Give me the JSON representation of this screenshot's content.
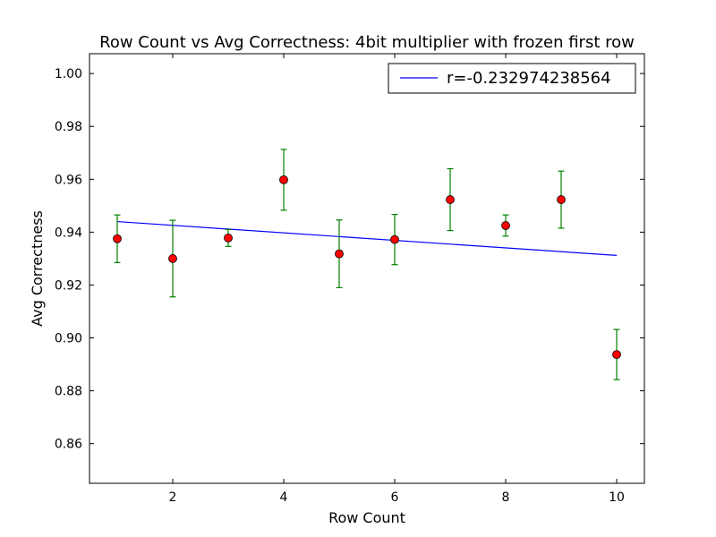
{
  "chart_data": {
    "type": "scatter",
    "title": "Row Count vs Avg Correctness: 4bit multiplier with frozen first row",
    "xlabel": "Row Count",
    "ylabel": "Avg Correctness",
    "xlim": [
      0.5,
      10.5
    ],
    "ylim": [
      0.845,
      1.0075
    ],
    "xticks": [
      2,
      4,
      6,
      8,
      10
    ],
    "xtick_labels": [
      "2",
      "4",
      "6",
      "8",
      "10"
    ],
    "yticks": [
      0.86,
      0.88,
      0.9,
      0.92,
      0.94,
      0.96,
      0.98,
      1.0
    ],
    "ytick_labels": [
      "0.86",
      "0.88",
      "0.90",
      "0.92",
      "0.94",
      "0.96",
      "0.98",
      "1.00"
    ],
    "grid": false,
    "legend_position": "top-right",
    "points": {
      "x": [
        1,
        2,
        3,
        4,
        5,
        6,
        7,
        8,
        9,
        10
      ],
      "y": [
        0.9375,
        0.93,
        0.9378,
        0.9598,
        0.9318,
        0.9372,
        0.9523,
        0.9425,
        0.9523,
        0.8937
      ],
      "yerr": [
        0.009,
        0.0145,
        0.0032,
        0.0115,
        0.0128,
        0.0095,
        0.0117,
        0.004,
        0.0108,
        0.0095
      ]
    },
    "fit_line": {
      "name": "r=-0.232974238564",
      "x": [
        1,
        10
      ],
      "y": [
        0.944,
        0.9312
      ]
    },
    "colors": {
      "points": "#ff0000",
      "errorbars": "#008000",
      "fit_line": "#0000ff",
      "axes": "#000000"
    }
  }
}
